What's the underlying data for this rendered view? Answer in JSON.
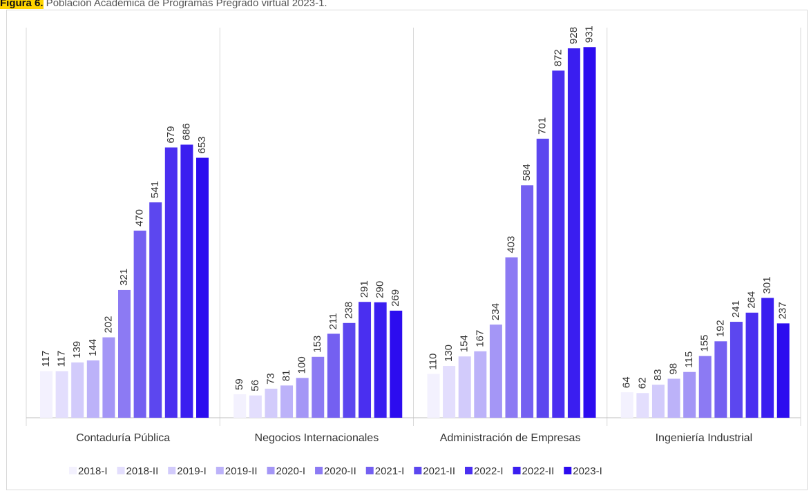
{
  "caption": {
    "label": "Figura 6.",
    "text": " Población Académica de Programas Pregrado virtual 2023-1."
  },
  "chart_data": {
    "type": "bar",
    "title": "",
    "xlabel": "",
    "ylabel": "",
    "ylim": [
      0,
      980
    ],
    "grid": false,
    "legend_position": "bottom",
    "categories": [
      "Contaduría Pública",
      "Negocios Internacionales",
      "Administración de Empresas",
      "Ingeniería Industrial"
    ],
    "series": [
      {
        "name": "2018-I",
        "color": "#f3f1fe",
        "values": [
          117,
          59,
          110,
          64
        ]
      },
      {
        "name": "2018-II",
        "color": "#e3defd",
        "values": [
          117,
          56,
          130,
          62
        ]
      },
      {
        "name": "2019-I",
        "color": "#d2cbfb",
        "values": [
          139,
          73,
          154,
          83
        ]
      },
      {
        "name": "2019-II",
        "color": "#bcb2f9",
        "values": [
          144,
          81,
          167,
          98
        ]
      },
      {
        "name": "2020-I",
        "color": "#a496f6",
        "values": [
          202,
          100,
          234,
          115
        ]
      },
      {
        "name": "2020-II",
        "color": "#8c7af3",
        "values": [
          321,
          153,
          403,
          155
        ]
      },
      {
        "name": "2021-I",
        "color": "#7460f1",
        "values": [
          470,
          211,
          584,
          192
        ]
      },
      {
        "name": "2021-II",
        "color": "#5c47ef",
        "values": [
          541,
          238,
          701,
          241
        ]
      },
      {
        "name": "2022-I",
        "color": "#4a2ff0",
        "values": [
          679,
          291,
          872,
          264
        ]
      },
      {
        "name": "2022-II",
        "color": "#3a1ef0",
        "values": [
          686,
          290,
          928,
          301
        ]
      },
      {
        "name": "2023-I",
        "color": "#2c0cef",
        "values": [
          653,
          269,
          931,
          237
        ]
      }
    ]
  }
}
